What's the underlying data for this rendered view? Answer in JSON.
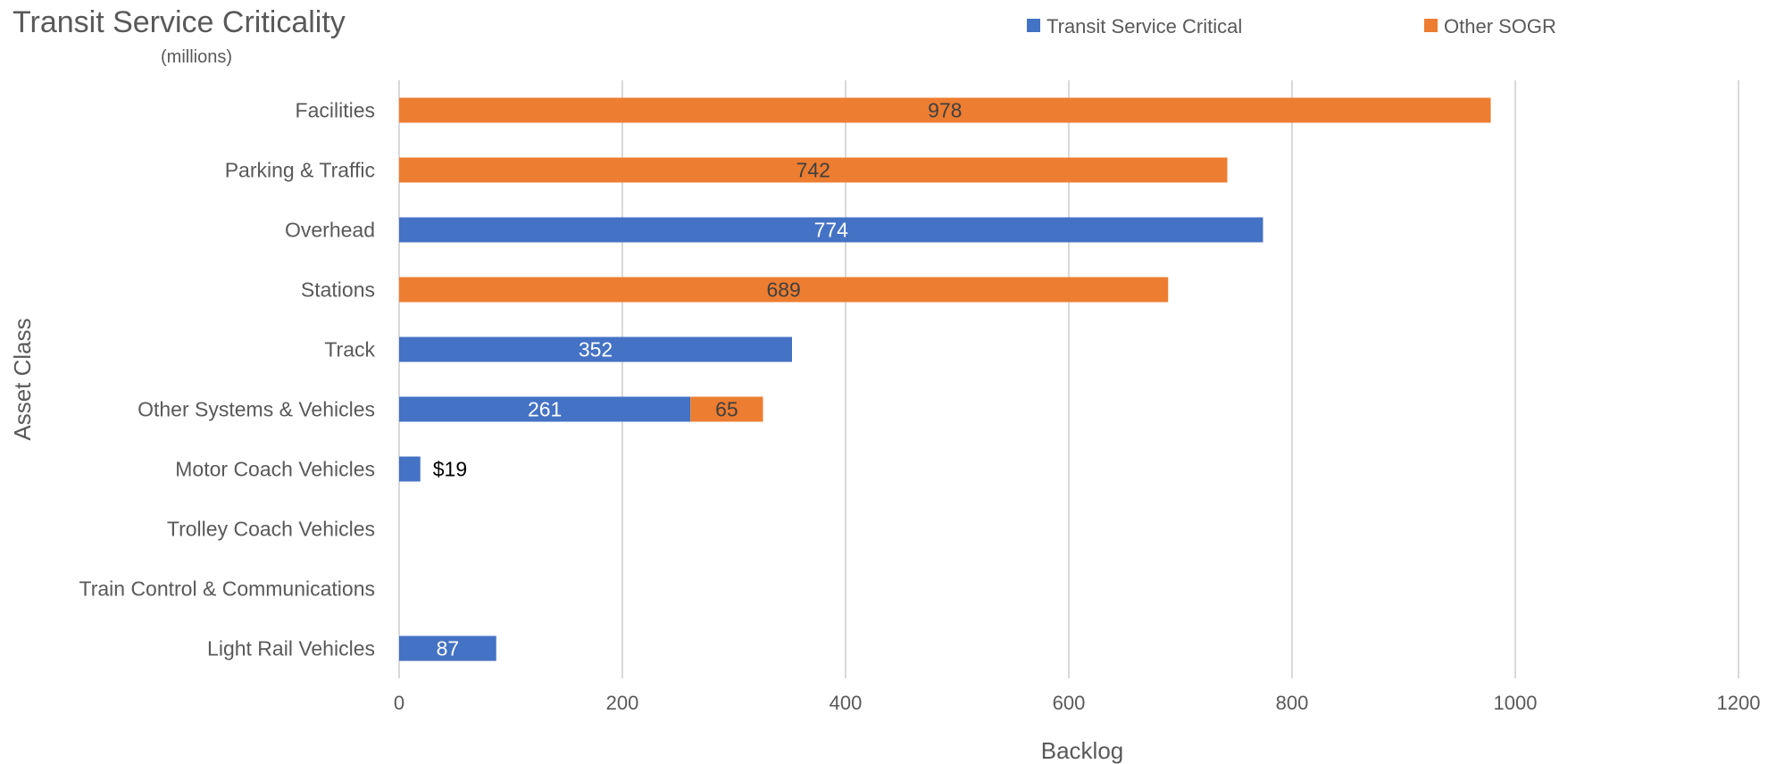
{
  "chart_data": {
    "type": "bar",
    "orientation": "horizontal",
    "stacked": true,
    "title": "Transit Service Criticality",
    "subtitle": "(millions)",
    "xlabel": "Backlog",
    "ylabel": "Asset Class",
    "xlim": [
      0,
      1200
    ],
    "x_ticks": [
      "0",
      "200",
      "400",
      "600",
      "800",
      "1000",
      "1200"
    ],
    "grid": true,
    "legend_position": "top",
    "categories": [
      "Facilities",
      "Parking & Traffic",
      "Overhead",
      "Stations",
      "Track",
      "Other Systems & Vehicles",
      "Motor Coach Vehicles",
      "Trolley Coach Vehicles",
      "Train Control & Communications",
      "Light Rail Vehicles"
    ],
    "series": [
      {
        "name": "Transit Service Critical",
        "color": "#4472C4",
        "values": [
          0,
          0,
          774,
          0,
          352,
          261,
          19,
          0,
          0,
          87
        ],
        "labels": [
          "",
          "",
          "774",
          "",
          "352",
          "261",
          "$19",
          "",
          "",
          "87"
        ]
      },
      {
        "name": "Other SOGR",
        "color": "#ED7D31",
        "values": [
          978,
          742,
          0,
          689,
          0,
          65,
          0,
          0,
          0,
          0
        ],
        "labels": [
          "978",
          "742",
          "",
          "689",
          "",
          "65",
          "",
          "",
          "",
          ""
        ]
      }
    ]
  }
}
